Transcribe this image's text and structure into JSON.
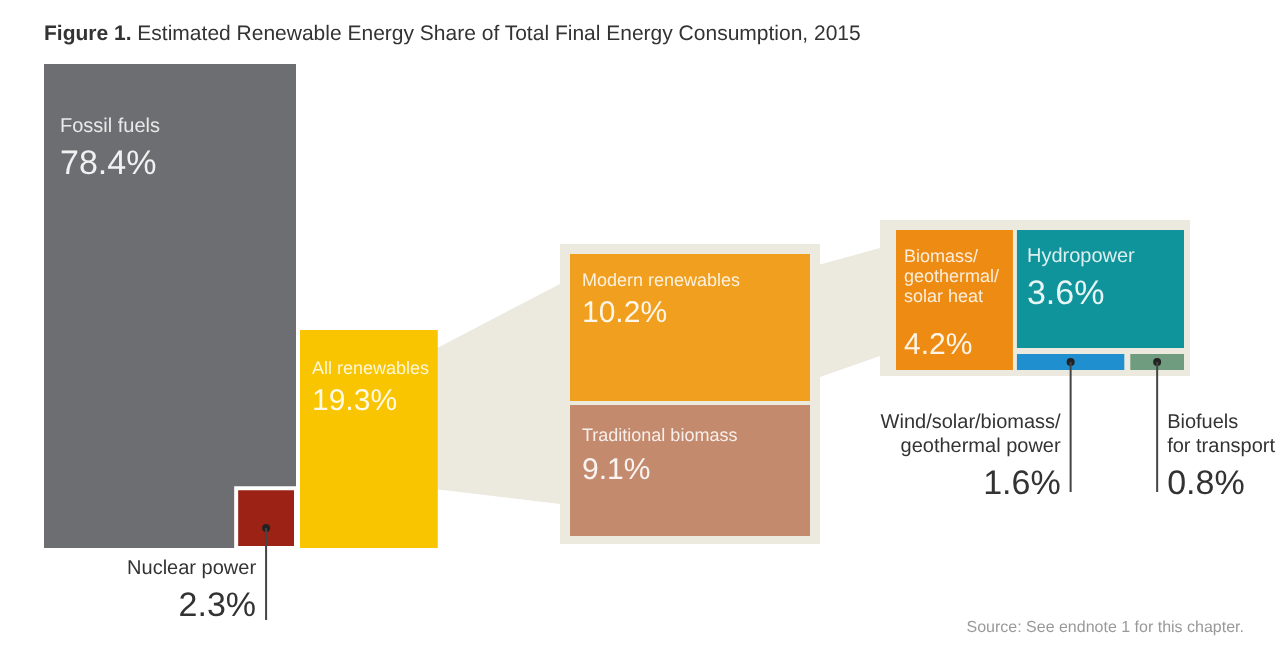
{
  "chart_data": {
    "type": "other",
    "title": "Figure 1. Estimated Renewable Energy Share of Total Final Energy Consumption, 2015",
    "categories": [
      "Fossil fuels",
      "Nuclear power",
      "All renewables",
      "Modern renewables",
      "Traditional biomass",
      "Biomass/geothermal/solar heat",
      "Hydropower",
      "Wind/solar/biomass/geothermal power",
      "Biofuels for transport"
    ],
    "values": [
      78.4,
      2.3,
      19.3,
      10.2,
      9.1,
      4.2,
      3.6,
      1.6,
      0.8
    ],
    "value_labels": [
      "78.4%",
      "2.3%",
      "19.3%",
      "10.2%",
      "9.1%",
      "4.2%",
      "3.6%",
      "1.6%",
      "0.8%"
    ],
    "colors": [
      "#6d6e71",
      "#9b2215",
      "#f9c400",
      "#f0a01e",
      "#c48a6e",
      "#ed8b12",
      "#10949b",
      "#1f8fd0",
      "#6f9b7e"
    ],
    "annotations": [
      "Source: See endnote 1 for this chapter."
    ]
  }
}
